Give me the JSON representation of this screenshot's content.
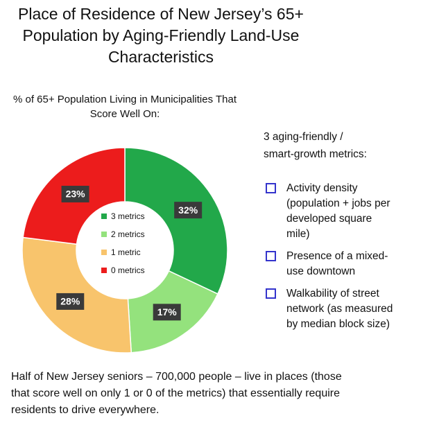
{
  "chart_data": {
    "type": "pie",
    "title": [
      "Place of Residence of New Jersey’s 65+",
      "Population by Aging-Friendly Land-Use",
      "Characteristics"
    ],
    "subtitle": [
      "% of 65+ Population Living in Municipalities That",
      "Score Well On:"
    ],
    "categories": [
      "3 metrics",
      "2 metrics",
      "1 metric",
      "0 metrics"
    ],
    "values": [
      32,
      17,
      28,
      23
    ],
    "value_labels": [
      "32%",
      "17%",
      "28%",
      "23%"
    ],
    "colors": [
      "#22a84a",
      "#94e27d",
      "#f8c46c",
      "#ec1c1c"
    ],
    "donut": true
  },
  "side_panel": {
    "heading": [
      "3 aging-friendly /",
      "smart-growth metrics:"
    ],
    "items": [
      [
        "Activity density",
        "(population + jobs per",
        "developed square",
        "mile)"
      ],
      [
        "Presence of a mixed-",
        "use downtown"
      ],
      [
        "Walkability of street",
        "network (as measured",
        "by median block size)"
      ]
    ]
  },
  "footer": [
    "Half of New Jersey seniors – 700,000 people – live in places (those",
    "that score well on only 1 or 0 of the metrics) that essentially require",
    "residents to drive everywhere."
  ]
}
